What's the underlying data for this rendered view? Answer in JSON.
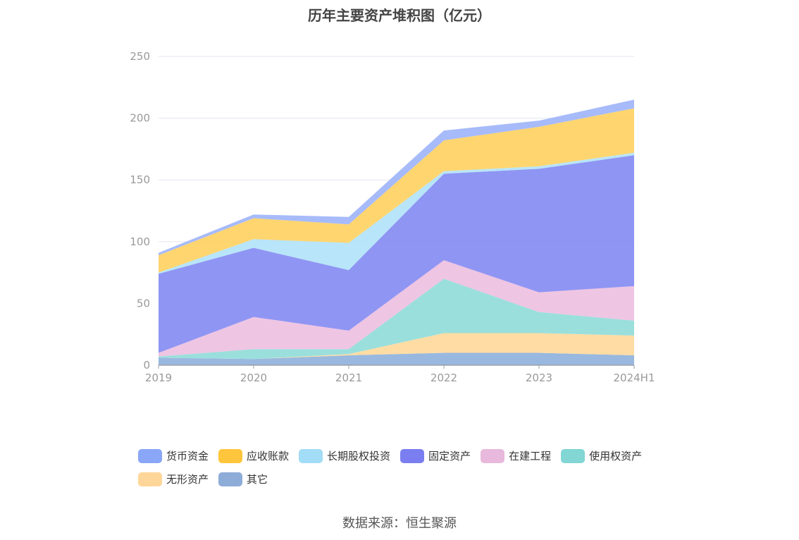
{
  "source_label": "数据来源：恒生聚源",
  "chart_data": {
    "type": "area",
    "stacked": true,
    "title": "历年主要资产堆积图（亿元）",
    "x": [
      "2019",
      "2020",
      "2021",
      "2022",
      "2023",
      "2024H1"
    ],
    "y_ticks": [
      "0",
      "50",
      "100",
      "150",
      "200",
      "250"
    ],
    "ylim": [
      0,
      250
    ],
    "grid": true,
    "legend_position": "bottom",
    "series": [
      {
        "name": "其它",
        "color": "#8eb0dc",
        "values": [
          6,
          5,
          8,
          10,
          10,
          8
        ]
      },
      {
        "name": "无形资产",
        "color": "#ffd89a",
        "values": [
          0,
          0,
          1,
          16,
          16,
          16
        ]
      },
      {
        "name": "使用权资产",
        "color": "#8fdbd8",
        "values": [
          1,
          8,
          4,
          44,
          17,
          12
        ]
      },
      {
        "name": "在建工程",
        "color": "#ecbfe0",
        "values": [
          3,
          26,
          15,
          15,
          16,
          28
        ]
      },
      {
        "name": "固定资产",
        "color": "#8389f2",
        "values": [
          64,
          56,
          49,
          70,
          100,
          106
        ]
      },
      {
        "name": "长期股权投资",
        "color": "#b0e2f8",
        "values": [
          1,
          7,
          22,
          2,
          2,
          2
        ]
      },
      {
        "name": "应收账款",
        "color": "#ffd060",
        "values": [
          14,
          17,
          15,
          25,
          32,
          36
        ]
      },
      {
        "name": "货币资金",
        "color": "#9db4fa",
        "values": [
          2,
          3,
          6,
          8,
          5,
          7
        ]
      }
    ],
    "legend_order": [
      "货币资金",
      "应收账款",
      "长期股权投资",
      "固定资产",
      "在建工程",
      "使用权资产",
      "无形资产",
      "其它"
    ],
    "legend_colors": [
      "#8aa7f7",
      "#ffc53d",
      "#a3dcf6",
      "#7b7ef0",
      "#e8b9dc",
      "#82d6d4",
      "#ffd699",
      "#8eacd8"
    ]
  }
}
